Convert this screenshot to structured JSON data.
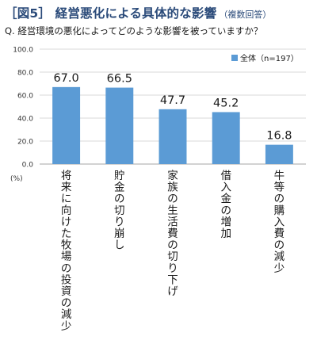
{
  "header": {
    "title": "［図5］ 経営悪化による具体的な影響",
    "title_note": "（複数回答）",
    "question": "Q. 経営環境の悪化によってどのような影響を被っていますか？"
  },
  "chart_data": {
    "type": "bar",
    "categories": [
      "将来に向けた牧場の投資の減少",
      "貯金の切り崩し",
      "家族の生活費の切り下げ",
      "借入金の増加",
      "牛等の購入費の減少"
    ],
    "series": [
      {
        "name": "全体（n=197）",
        "values": [
          67.0,
          66.5,
          47.7,
          45.2,
          16.8
        ]
      }
    ],
    "ylim": [
      0,
      100
    ],
    "yticks": [
      0,
      20,
      40,
      60,
      80,
      100
    ],
    "ytick_labels": [
      "0.0",
      "20.0",
      "40.0",
      "60.0",
      "80.0",
      "100.0"
    ],
    "yunit": "(%)",
    "grid": true,
    "legend_position": "top-right",
    "colors": {
      "bar": "#5b9bd5",
      "grid": "#d9d9d9",
      "axis": "#a6a6a6",
      "title": "#2b4b7a"
    }
  }
}
